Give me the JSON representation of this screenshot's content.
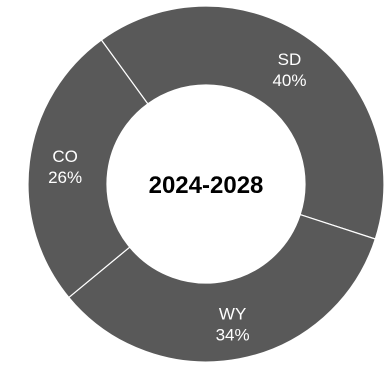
{
  "chart_data": {
    "type": "pie",
    "donut": true,
    "center_label": "2024-2028",
    "title": "",
    "slices": [
      {
        "label": "SD",
        "value": 40,
        "value_label": "40%"
      },
      {
        "label": "WY",
        "value": 34,
        "value_label": "34%"
      },
      {
        "label": "CO",
        "value": 26,
        "value_label": "26%"
      }
    ],
    "slice_color": "#595959",
    "separator_color": "#ffffff",
    "legend": "none"
  }
}
